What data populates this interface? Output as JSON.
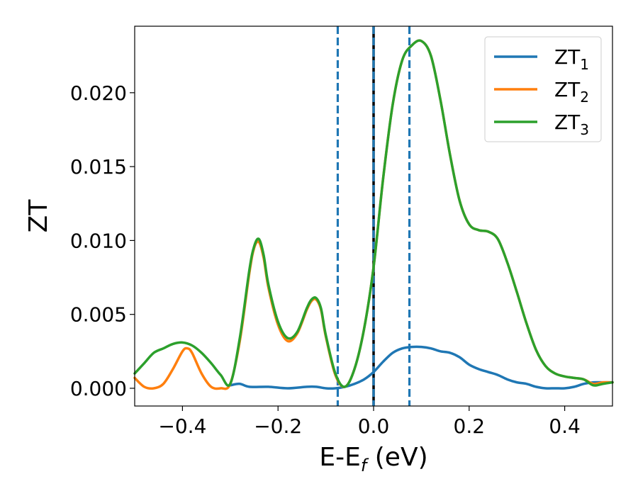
{
  "chart_data": {
    "type": "line",
    "xlabel": {
      "base": "E-E",
      "sub": "f",
      "tail": " (eV)"
    },
    "ylabel": "ZT",
    "xlim": [
      -0.5,
      0.5
    ],
    "ylim": [
      -0.0012,
      0.0245
    ],
    "xticks": [
      -0.4,
      -0.2,
      0.0,
      0.2,
      0.4
    ],
    "xtick_labels": [
      "−0.4",
      "−0.2",
      "0.0",
      "0.2",
      "0.4"
    ],
    "yticks": [
      0.0,
      0.005,
      0.01,
      0.015,
      0.02
    ],
    "ytick_labels": [
      "0.000",
      "0.005",
      "0.010",
      "0.015",
      "0.020"
    ],
    "grid": false,
    "legend_position": "top-right",
    "vlines": [
      {
        "x": -0.075,
        "style": "dashed",
        "color": "#1f77b4"
      },
      {
        "x": 0.0,
        "style": "solid",
        "color": "#000000"
      },
      {
        "x": 0.0,
        "style": "dashed",
        "color": "#1f77b4"
      },
      {
        "x": 0.075,
        "style": "dashed",
        "color": "#1f77b4"
      }
    ],
    "series": [
      {
        "name": "ZT",
        "sub": "1",
        "color": "#1f77b4",
        "x": [
          -0.3,
          -0.28,
          -0.26,
          -0.22,
          -0.18,
          -0.14,
          -0.12,
          -0.1,
          -0.08,
          -0.06,
          -0.04,
          -0.02,
          0.0,
          0.02,
          0.04,
          0.06,
          0.08,
          0.1,
          0.12,
          0.14,
          0.16,
          0.18,
          0.2,
          0.22,
          0.24,
          0.26,
          0.28,
          0.3,
          0.32,
          0.34,
          0.36,
          0.38,
          0.4,
          0.42,
          0.44,
          0.46,
          0.48,
          0.5
        ],
        "y": [
          0.0002,
          0.0003,
          0.0001,
          0.0001,
          0.0,
          0.0001,
          0.0001,
          0.0,
          0.0,
          0.0001,
          0.0003,
          0.0006,
          0.0011,
          0.0018,
          0.0024,
          0.0027,
          0.0028,
          0.0028,
          0.0027,
          0.0025,
          0.0024,
          0.0021,
          0.0016,
          0.0013,
          0.0011,
          0.0009,
          0.0006,
          0.0004,
          0.0003,
          0.0001,
          0.0,
          0.0,
          0.0,
          0.0001,
          0.0003,
          0.0004,
          0.0004,
          0.0004
        ]
      },
      {
        "name": "ZT",
        "sub": "2",
        "color": "#ff7f0e",
        "x": [
          -0.5,
          -0.48,
          -0.46,
          -0.44,
          -0.42,
          -0.4,
          -0.39,
          -0.38,
          -0.36,
          -0.34,
          -0.32,
          -0.3,
          -0.28,
          -0.26,
          -0.25,
          -0.24,
          -0.23,
          -0.22,
          -0.2,
          -0.18,
          -0.16,
          -0.14,
          -0.13,
          -0.12,
          -0.11,
          -0.1,
          -0.08,
          -0.06,
          -0.04,
          -0.02,
          0.0,
          0.02,
          0.04,
          0.06,
          0.08,
          0.1,
          0.12,
          0.14,
          0.16,
          0.18,
          0.2,
          0.22,
          0.24,
          0.26,
          0.28,
          0.3,
          0.32,
          0.34,
          0.36,
          0.38,
          0.4,
          0.42,
          0.44,
          0.46,
          0.48,
          0.5
        ],
        "y": [
          0.0007,
          0.0001,
          0.0,
          0.0003,
          0.0013,
          0.0025,
          0.0027,
          0.0024,
          0.001,
          0.0001,
          0.0,
          0.0003,
          0.0032,
          0.0078,
          0.0095,
          0.0099,
          0.0088,
          0.0068,
          0.0043,
          0.0032,
          0.0037,
          0.0053,
          0.0059,
          0.006,
          0.0053,
          0.0035,
          0.0009,
          0.0001,
          0.0013,
          0.004,
          0.0082,
          0.0142,
          0.0192,
          0.0222,
          0.0232,
          0.0235,
          0.0225,
          0.0195,
          0.0158,
          0.0127,
          0.0111,
          0.0107,
          0.0106,
          0.0101,
          0.0085,
          0.0065,
          0.0044,
          0.0026,
          0.0015,
          0.001,
          0.0008,
          0.0007,
          0.0006,
          0.0003,
          0.0004,
          0.0004
        ]
      },
      {
        "name": "ZT",
        "sub": "3",
        "color": "#2ca02c",
        "x": [
          -0.5,
          -0.48,
          -0.46,
          -0.44,
          -0.42,
          -0.4,
          -0.38,
          -0.36,
          -0.34,
          -0.32,
          -0.3,
          -0.28,
          -0.26,
          -0.25,
          -0.24,
          -0.23,
          -0.22,
          -0.2,
          -0.18,
          -0.16,
          -0.14,
          -0.13,
          -0.12,
          -0.11,
          -0.1,
          -0.08,
          -0.06,
          -0.04,
          -0.02,
          0.0,
          0.02,
          0.04,
          0.06,
          0.08,
          0.1,
          0.12,
          0.14,
          0.16,
          0.18,
          0.2,
          0.22,
          0.24,
          0.26,
          0.28,
          0.3,
          0.32,
          0.34,
          0.36,
          0.38,
          0.4,
          0.42,
          0.44,
          0.46,
          0.48,
          0.5
        ],
        "y": [
          0.001,
          0.0017,
          0.0024,
          0.0027,
          0.003,
          0.0031,
          0.0029,
          0.0024,
          0.0017,
          0.0009,
          0.0003,
          0.0034,
          0.008,
          0.0096,
          0.0101,
          0.009,
          0.007,
          0.0045,
          0.0034,
          0.0038,
          0.0054,
          0.006,
          0.0061,
          0.0054,
          0.0036,
          0.001,
          0.0001,
          0.0013,
          0.004,
          0.0082,
          0.0142,
          0.0192,
          0.0222,
          0.0232,
          0.0235,
          0.0225,
          0.0195,
          0.0158,
          0.0127,
          0.0111,
          0.0107,
          0.0106,
          0.0101,
          0.0085,
          0.0065,
          0.0044,
          0.0026,
          0.0015,
          0.001,
          0.0008,
          0.0007,
          0.0006,
          0.0002,
          0.0003,
          0.0004
        ]
      }
    ]
  }
}
